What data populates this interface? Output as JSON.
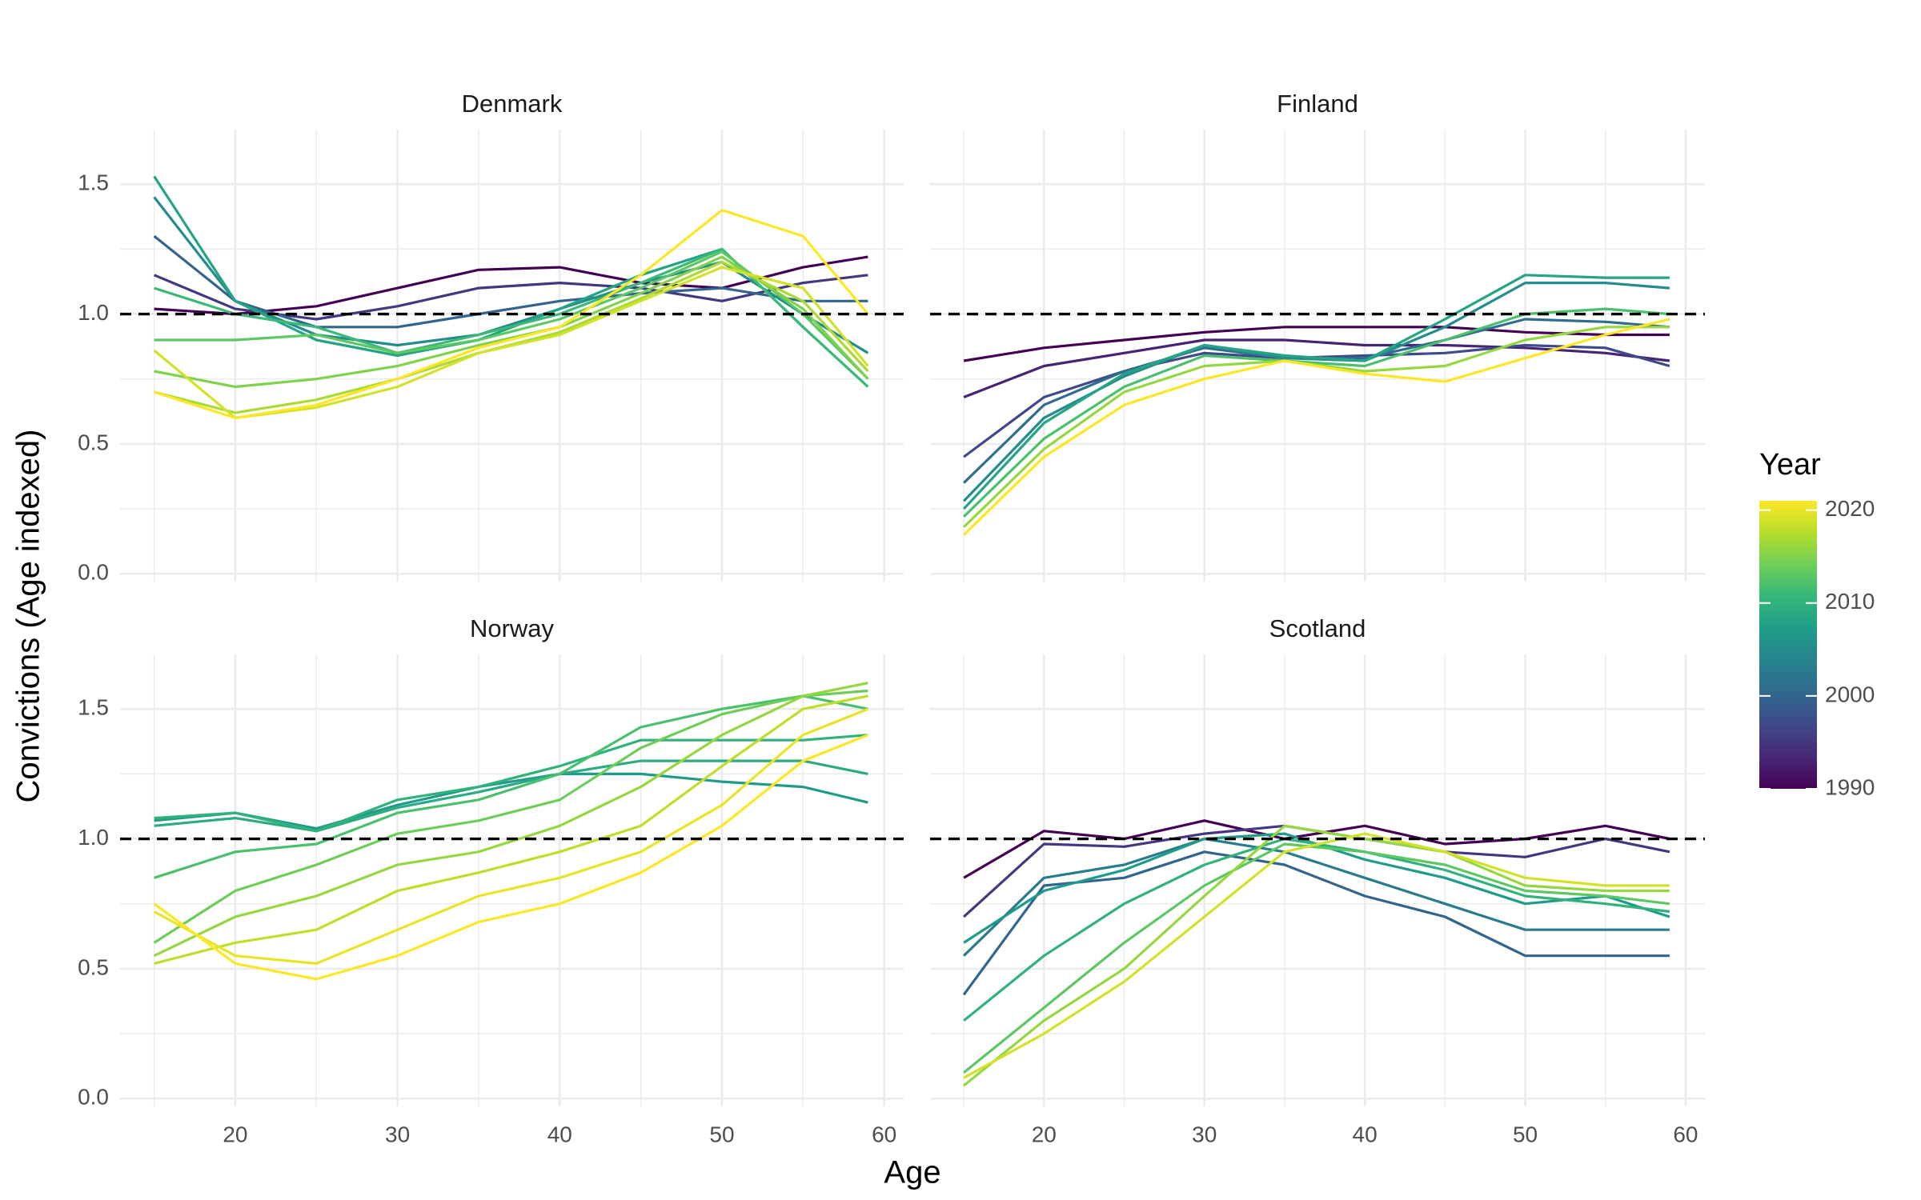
{
  "chart_data": {
    "type": "line",
    "x_label": "Age",
    "y_label": "Convictions (Age indexed)",
    "xlim": [
      12.9,
      61.2
    ],
    "ylim": [
      -0.03,
      1.71
    ],
    "xticks": [
      20,
      30,
      40,
      50,
      60
    ],
    "yticks": [
      {
        "value": 0,
        "label": "0.0"
      },
      {
        "value": 0.5,
        "label": "0.5"
      },
      {
        "value": 1,
        "label": "1.0"
      },
      {
        "value": 1.5,
        "label": "1.5"
      }
    ],
    "x_minor_grid": [
      15,
      25,
      35,
      45,
      55
    ],
    "y_minor_grid": [
      0.25,
      0.75,
      1.25
    ],
    "grid": true,
    "reference_line": 1,
    "legend": {
      "title": "Year",
      "range": [
        1990,
        2021
      ],
      "ticks": [
        1990,
        2000,
        2010,
        2020
      ],
      "colors": [
        "#440154",
        "#482878",
        "#3e4989",
        "#31688e",
        "#26828e",
        "#1f9e89",
        "#35b779",
        "#6ece58",
        "#b5de2b",
        "#fde725"
      ]
    },
    "x": [
      15,
      20,
      25,
      30,
      35,
      40,
      45,
      50,
      55,
      59
    ],
    "facets": [
      {
        "title": "Denmark",
        "series": [
          {
            "year": 1990,
            "values": [
              1.02,
              1.0,
              1.03,
              1.1,
              1.17,
              1.18,
              1.12,
              1.1,
              1.18,
              1.22
            ]
          },
          {
            "year": 1995,
            "values": [
              1.15,
              1.02,
              0.98,
              1.03,
              1.1,
              1.12,
              1.1,
              1.05,
              1.12,
              1.15
            ]
          },
          {
            "year": 2000,
            "values": [
              1.3,
              1.05,
              0.95,
              0.95,
              1.0,
              1.05,
              1.08,
              1.1,
              1.05,
              1.05
            ]
          },
          {
            "year": 2005,
            "values": [
              1.45,
              1.05,
              0.92,
              0.88,
              0.92,
              1.02,
              1.12,
              1.2,
              1.0,
              0.85
            ]
          },
          {
            "year": 2008,
            "values": [
              1.53,
              1.05,
              0.9,
              0.84,
              0.9,
              1.02,
              1.15,
              1.25,
              0.95,
              0.72
            ]
          },
          {
            "year": 2011,
            "values": [
              1.1,
              1.0,
              0.95,
              0.85,
              0.92,
              1.0,
              1.12,
              1.25,
              0.95,
              0.72
            ]
          },
          {
            "year": 2013,
            "values": [
              0.9,
              0.9,
              0.92,
              0.85,
              0.9,
              0.98,
              1.1,
              1.24,
              1.0,
              0.75
            ]
          },
          {
            "year": 2015,
            "values": [
              0.78,
              0.72,
              0.75,
              0.8,
              0.88,
              0.95,
              1.08,
              1.22,
              1.02,
              0.75
            ]
          },
          {
            "year": 2017,
            "values": [
              0.7,
              0.62,
              0.67,
              0.75,
              0.85,
              0.93,
              1.06,
              1.2,
              1.05,
              0.78
            ]
          },
          {
            "year": 2019,
            "values": [
              0.86,
              0.6,
              0.64,
              0.72,
              0.85,
              0.92,
              1.05,
              1.18,
              1.1,
              0.8
            ]
          },
          {
            "year": 2021,
            "values": [
              0.7,
              0.6,
              0.65,
              0.75,
              0.87,
              0.95,
              1.15,
              1.4,
              1.3,
              1.0
            ]
          }
        ]
      },
      {
        "title": "Finland",
        "series": [
          {
            "year": 1990,
            "values": [
              0.82,
              0.87,
              0.9,
              0.93,
              0.95,
              0.95,
              0.95,
              0.93,
              0.92,
              0.92
            ]
          },
          {
            "year": 1993,
            "values": [
              0.68,
              0.8,
              0.85,
              0.9,
              0.9,
              0.88,
              0.88,
              0.87,
              0.85,
              0.82
            ]
          },
          {
            "year": 1997,
            "values": [
              0.45,
              0.68,
              0.78,
              0.85,
              0.83,
              0.84,
              0.85,
              0.88,
              0.87,
              0.8
            ]
          },
          {
            "year": 2001,
            "values": [
              0.35,
              0.65,
              0.78,
              0.87,
              0.83,
              0.83,
              0.9,
              0.98,
              0.97,
              0.95
            ]
          },
          {
            "year": 2005,
            "values": [
              0.28,
              0.6,
              0.76,
              0.88,
              0.83,
              0.82,
              0.95,
              1.12,
              1.12,
              1.1
            ]
          },
          {
            "year": 2008,
            "values": [
              0.25,
              0.58,
              0.77,
              0.88,
              0.84,
              0.82,
              0.98,
              1.15,
              1.14,
              1.14
            ]
          },
          {
            "year": 2012,
            "values": [
              0.22,
              0.52,
              0.72,
              0.84,
              0.82,
              0.8,
              0.9,
              1.0,
              1.02,
              1.0
            ]
          },
          {
            "year": 2016,
            "values": [
              0.18,
              0.48,
              0.7,
              0.8,
              0.82,
              0.78,
              0.8,
              0.9,
              0.95,
              0.95
            ]
          },
          {
            "year": 2021,
            "values": [
              0.15,
              0.45,
              0.65,
              0.75,
              0.82,
              0.77,
              0.74,
              0.83,
              0.92,
              0.98
            ]
          }
        ]
      },
      {
        "title": "Norway",
        "series": [
          {
            "year": 2007,
            "values": [
              1.07,
              1.1,
              1.04,
              1.13,
              1.2,
              1.25,
              1.25,
              1.22,
              1.2,
              1.14
            ]
          },
          {
            "year": 2009,
            "values": [
              1.05,
              1.08,
              1.03,
              1.12,
              1.18,
              1.25,
              1.3,
              1.3,
              1.3,
              1.25
            ]
          },
          {
            "year": 2010,
            "values": [
              1.08,
              1.1,
              1.03,
              1.15,
              1.2,
              1.28,
              1.38,
              1.38,
              1.38,
              1.4
            ]
          },
          {
            "year": 2012,
            "values": [
              0.85,
              0.95,
              0.98,
              1.1,
              1.15,
              1.25,
              1.43,
              1.5,
              1.55,
              1.5
            ]
          },
          {
            "year": 2014,
            "values": [
              0.6,
              0.8,
              0.9,
              1.02,
              1.07,
              1.15,
              1.35,
              1.48,
              1.55,
              1.57
            ]
          },
          {
            "year": 2016,
            "values": [
              0.55,
              0.7,
              0.78,
              0.9,
              0.95,
              1.05,
              1.2,
              1.4,
              1.55,
              1.6
            ]
          },
          {
            "year": 2018,
            "values": [
              0.52,
              0.6,
              0.65,
              0.8,
              0.87,
              0.95,
              1.05,
              1.28,
              1.5,
              1.55
            ]
          },
          {
            "year": 2020,
            "values": [
              0.72,
              0.55,
              0.52,
              0.65,
              0.78,
              0.85,
              0.95,
              1.13,
              1.4,
              1.5
            ]
          },
          {
            "year": 2021,
            "values": [
              0.75,
              0.52,
              0.46,
              0.55,
              0.68,
              0.75,
              0.87,
              1.05,
              1.3,
              1.4
            ]
          }
        ]
      },
      {
        "title": "Scotland",
        "series": [
          {
            "year": 1990,
            "values": [
              0.85,
              1.03,
              1.0,
              1.07,
              1.0,
              1.05,
              0.98,
              1.0,
              1.05,
              1.0
            ]
          },
          {
            "year": 1995,
            "values": [
              0.7,
              0.98,
              0.97,
              1.02,
              1.05,
              1.0,
              0.95,
              0.93,
              1.0,
              0.95
            ]
          },
          {
            "year": 2000,
            "values": [
              0.4,
              0.82,
              0.85,
              0.95,
              0.9,
              0.78,
              0.7,
              0.55,
              0.55,
              0.55
            ]
          },
          {
            "year": 2003,
            "values": [
              0.55,
              0.85,
              0.9,
              1.0,
              0.95,
              0.85,
              0.75,
              0.65,
              0.65,
              0.65
            ]
          },
          {
            "year": 2007,
            "values": [
              0.6,
              0.8,
              0.88,
              1.0,
              1.02,
              0.92,
              0.85,
              0.75,
              0.78,
              0.7
            ]
          },
          {
            "year": 2010,
            "values": [
              0.3,
              0.55,
              0.75,
              0.9,
              1.0,
              0.95,
              0.88,
              0.78,
              0.75,
              0.72
            ]
          },
          {
            "year": 2013,
            "values": [
              0.1,
              0.35,
              0.6,
              0.82,
              0.98,
              0.95,
              0.9,
              0.8,
              0.78,
              0.75
            ]
          },
          {
            "year": 2016,
            "values": [
              0.05,
              0.3,
              0.5,
              0.78,
              1.05,
              1.0,
              0.95,
              0.82,
              0.8,
              0.8
            ]
          },
          {
            "year": 2019,
            "values": [
              0.08,
              0.25,
              0.45,
              0.7,
              0.95,
              1.02,
              0.95,
              0.85,
              0.82,
              0.82
            ]
          }
        ]
      }
    ]
  }
}
